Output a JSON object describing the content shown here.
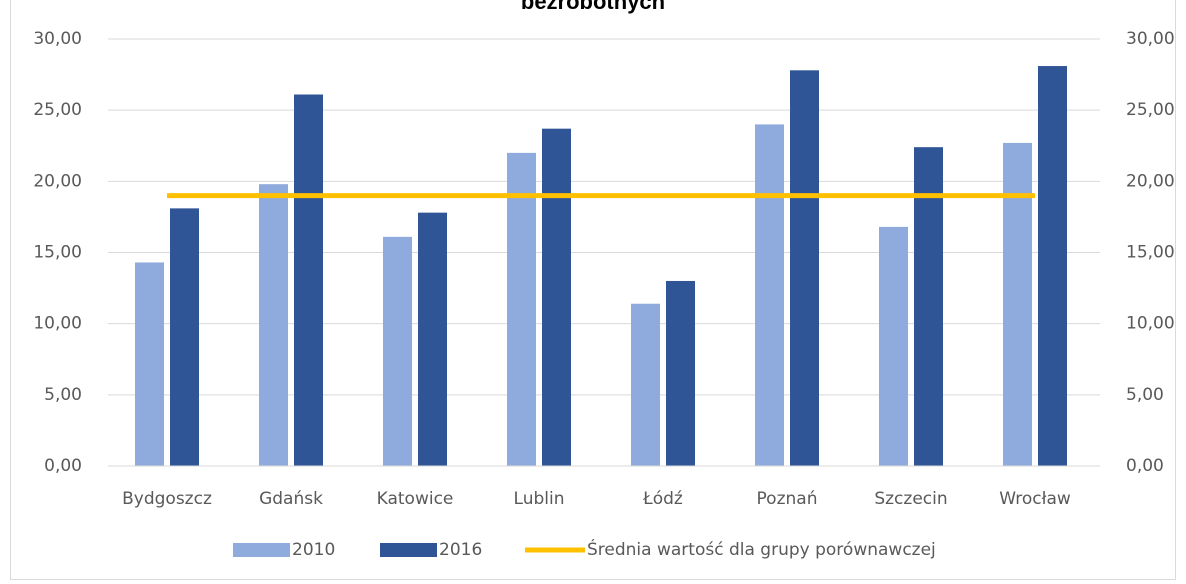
{
  "chart_data": {
    "type": "bar",
    "title": "bezrobotnych",
    "categories": [
      "Bydgoszcz",
      "Gdańsk",
      "Katowice",
      "Lublin",
      "Łódź",
      "Poznań",
      "Szczecin",
      "Wrocław"
    ],
    "series": [
      {
        "name": "2010",
        "color": "#8faadc",
        "values": [
          14.3,
          19.8,
          16.1,
          22.0,
          11.4,
          24.0,
          16.8,
          22.7
        ]
      },
      {
        "name": "2016",
        "color": "#2f5597",
        "values": [
          18.1,
          26.1,
          17.8,
          23.7,
          13.0,
          27.8,
          22.4,
          28.1
        ]
      },
      {
        "name": "Średnia wartość dla grupy porównawczej",
        "color": "#ffc000",
        "type": "line",
        "axis": "y2",
        "values": [
          19.0,
          19.0,
          19.0,
          19.0,
          19.0,
          19.0,
          19.0,
          19.0
        ]
      }
    ],
    "ylim": [
      0,
      30
    ],
    "yticks": [
      {
        "value": 0,
        "label": "0,00"
      },
      {
        "value": 5,
        "label": "5,00"
      },
      {
        "value": 10,
        "label": "10,00"
      },
      {
        "value": 15,
        "label": "15,00"
      },
      {
        "value": 20,
        "label": "20,00"
      },
      {
        "value": 25,
        "label": "25,00"
      },
      {
        "value": 30,
        "label": "30,00"
      }
    ],
    "y2lim": [
      0,
      30
    ],
    "y2ticks": [
      {
        "value": 0,
        "label": "0,00"
      },
      {
        "value": 5,
        "label": "5,00"
      },
      {
        "value": 10,
        "label": "10,00"
      },
      {
        "value": 15,
        "label": "15,00"
      },
      {
        "value": 20,
        "label": "20,00"
      },
      {
        "value": 25,
        "label": "25,00"
      },
      {
        "value": 30,
        "label": "30,00"
      }
    ],
    "grid": true,
    "legend": "bottom"
  }
}
